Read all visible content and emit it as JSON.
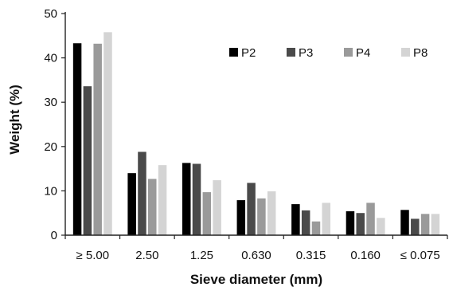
{
  "chart_data": {
    "type": "bar",
    "title": "",
    "xlabel": "Sieve diameter (mm)",
    "ylabel": "Weight (%)",
    "ylim": [
      0,
      50
    ],
    "yticks": [
      0,
      10,
      20,
      30,
      40,
      50
    ],
    "categories": [
      "≥ 5.00",
      "2.50",
      "1.25",
      "0.630",
      "0.315",
      "0.160",
      "≤ 0.075"
    ],
    "legend_position": "top-right",
    "grid": false,
    "series": [
      {
        "name": "P2",
        "color": "#000000",
        "values": [
          43.3,
          14.0,
          16.3,
          7.9,
          7.0,
          5.4,
          5.7
        ]
      },
      {
        "name": "P3",
        "color": "#4a4a4a",
        "values": [
          33.6,
          18.8,
          16.1,
          11.8,
          5.6,
          5.0,
          3.7
        ]
      },
      {
        "name": "P4",
        "color": "#9a9a9a",
        "values": [
          43.2,
          12.7,
          9.7,
          8.3,
          3.1,
          7.3,
          4.8
        ]
      },
      {
        "name": "P8",
        "color": "#d4d4d4",
        "values": [
          45.8,
          15.8,
          12.4,
          9.9,
          7.3,
          3.9,
          4.8
        ]
      }
    ]
  }
}
